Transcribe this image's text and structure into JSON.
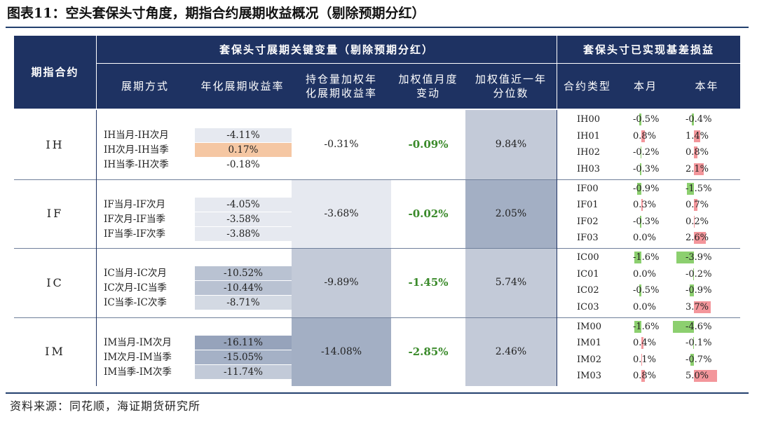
{
  "figure": {
    "title": "图表11：空头套保头寸角度，期指合约展期收益概况（剔除预期分红）",
    "source": "资料来源：同花顺，海证期货研究所"
  },
  "header": {
    "col_contract": "期指合约",
    "group_left": "套保头寸展期关键变量（剔除预期分红）",
    "group_right": "套保头寸已实现基差损益",
    "col_roll_method": "展期方式",
    "col_annual_yield": "年化展期收益率",
    "col_oi_weighted_line1": "持仓量加权年",
    "col_oi_weighted_line2": "化展期收益率",
    "col_weighted_monthly_line1": "加权值月度",
    "col_weighted_monthly_line2": "变动",
    "col_weighted_pct_line1": "加权值近一年",
    "col_weighted_pct_line2": "分位数",
    "col_type": "合约类型",
    "col_month": "本月",
    "col_year": "本年"
  },
  "colors": {
    "header_bg": "#1e3262",
    "positive_green": "#3a8a2a",
    "bar_green": "#8ccf6f",
    "bar_red": "#f3969b",
    "highlight_orange": "#f5c7a3"
  },
  "sections": [
    {
      "name": "IH",
      "weighted_yield": "-0.31%",
      "monthly_change": "-0.09%",
      "percentile": "9.84%",
      "rolls": [
        {
          "label": "IH当月-IH次月",
          "yield": "-4.11%"
        },
        {
          "label": "IH次月-IH当季",
          "yield": "0.17%"
        },
        {
          "label": "IH当季-IH次季",
          "yield": "-0.18%"
        }
      ],
      "contracts": [
        {
          "code": "IH00",
          "month": "-0.5%",
          "month_value": -0.5,
          "year": "-0.4%",
          "year_value": -0.4
        },
        {
          "code": "IH01",
          "month": "0.8%",
          "month_value": 0.8,
          "year": "1.4%",
          "year_value": 1.4
        },
        {
          "code": "IH02",
          "month": "-0.2%",
          "month_value": -0.2,
          "year": "0.8%",
          "year_value": 0.8
        },
        {
          "code": "IH03",
          "month": "-0.3%",
          "month_value": -0.3,
          "year": "2.1%",
          "year_value": 2.1
        }
      ]
    },
    {
      "name": "IF",
      "weighted_yield": "-3.68%",
      "monthly_change": "-0.02%",
      "percentile": "2.05%",
      "rolls": [
        {
          "label": "IF当月-IF次月",
          "yield": "-4.05%"
        },
        {
          "label": "IF次月-IF当季",
          "yield": "-3.58%"
        },
        {
          "label": "IF当季-IF次季",
          "yield": "-3.88%"
        }
      ],
      "contracts": [
        {
          "code": "IF00",
          "month": "-0.9%",
          "month_value": -0.9,
          "year": "-1.5%",
          "year_value": -1.5
        },
        {
          "code": "IF01",
          "month": "0.3%",
          "month_value": 0.3,
          "year": "0.7%",
          "year_value": 0.7
        },
        {
          "code": "IF02",
          "month": "-0.3%",
          "month_value": -0.3,
          "year": "0.2%",
          "year_value": 0.2
        },
        {
          "code": "IF03",
          "month": "0.0%",
          "month_value": 0.0,
          "year": "2.6%",
          "year_value": 2.6
        }
      ]
    },
    {
      "name": "IC",
      "weighted_yield": "-9.89%",
      "monthly_change": "-1.45%",
      "percentile": "5.74%",
      "rolls": [
        {
          "label": "IC当月-IC次月",
          "yield": "-10.52%"
        },
        {
          "label": "IC次月-IC当季",
          "yield": "-10.44%"
        },
        {
          "label": "IC当季-IC次季",
          "yield": "-8.71%"
        }
      ],
      "contracts": [
        {
          "code": "IC00",
          "month": "-1.6%",
          "month_value": -1.6,
          "year": "-3.9%",
          "year_value": -3.9
        },
        {
          "code": "IC01",
          "month": "0.0%",
          "month_value": 0.0,
          "year": "-0.2%",
          "year_value": -0.2
        },
        {
          "code": "IC02",
          "month": "-0.5%",
          "month_value": -0.5,
          "year": "-0.9%",
          "year_value": -0.9
        },
        {
          "code": "IC03",
          "month": "0.0%",
          "month_value": 0.0,
          "year": "3.7%",
          "year_value": 3.7
        }
      ]
    },
    {
      "name": "IM",
      "weighted_yield": "-14.08%",
      "monthly_change": "-2.85%",
      "percentile": "2.46%",
      "rolls": [
        {
          "label": "IM当月-IM次月",
          "yield": "-16.11%"
        },
        {
          "label": "IM次月-IM当季",
          "yield": "-15.05%"
        },
        {
          "label": "IM当季-IM次季",
          "yield": "-11.74%"
        }
      ],
      "contracts": [
        {
          "code": "IM00",
          "month": "-1.6%",
          "month_value": -1.6,
          "year": "-4.6%",
          "year_value": -4.6
        },
        {
          "code": "IM01",
          "month": "0.4%",
          "month_value": 0.4,
          "year": "-0.1%",
          "year_value": -0.1
        },
        {
          "code": "IM02",
          "month": "0.1%",
          "month_value": 0.1,
          "year": "-0.7%",
          "year_value": -0.7
        },
        {
          "code": "IM03",
          "month": "0.8%",
          "month_value": 0.8,
          "year": "5.0%",
          "year_value": 5.0
        }
      ]
    }
  ]
}
